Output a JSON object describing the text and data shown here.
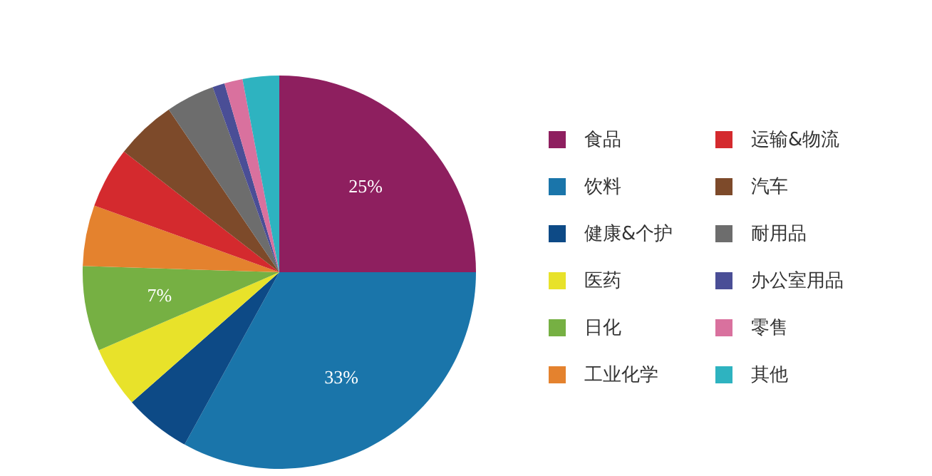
{
  "chart_data": {
    "type": "pie",
    "legend": "right",
    "categories": [
      "食品",
      "饮料",
      "健康&个护",
      "医药",
      "日化",
      "工业化学",
      "运输&物流",
      "汽车",
      "耐用品",
      "办公室用品",
      "零售",
      "其他"
    ],
    "values": [
      25,
      33,
      5.5,
      5,
      7,
      5,
      5,
      5,
      4,
      1,
      1.5,
      3
    ],
    "value_labels": [
      "25%",
      "33%",
      null,
      null,
      "7%",
      null,
      null,
      null,
      null,
      null,
      null,
      null
    ],
    "colors": [
      "#8e1f5f",
      "#1a75aa",
      "#0d4a86",
      "#e8e22a",
      "#76b043",
      "#e4822e",
      "#d42a2e",
      "#7d4a2a",
      "#6d6d6d",
      "#4a4e96",
      "#d9719e",
      "#2eb3c0"
    ]
  }
}
